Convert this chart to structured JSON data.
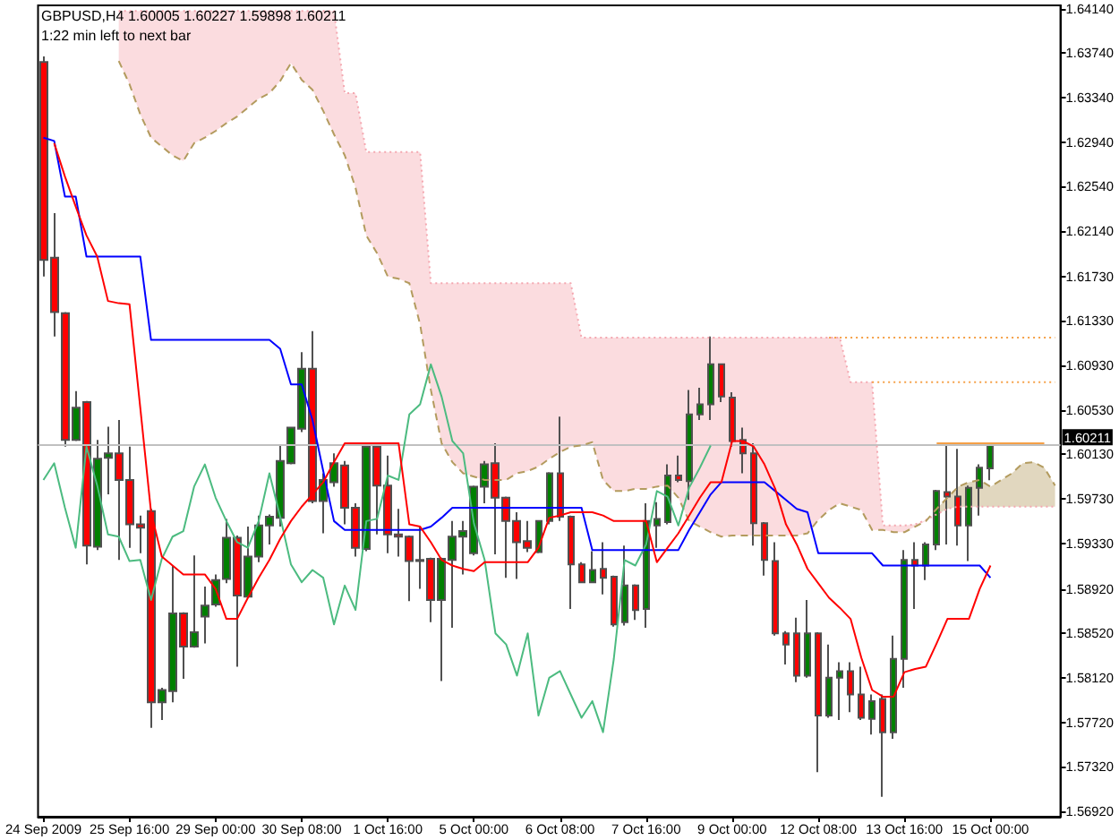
{
  "chart_data": {
    "type": "candlestick",
    "title": "GBPUSD,H4 1.60005 1.60227 1.59898 1.60211",
    "subtitle": "1:22 min left to next bar",
    "categories": [
      "24 Sep 2009",
      null,
      null,
      null,
      null,
      null,
      null,
      null,
      "25 Sep 16:00",
      null,
      null,
      null,
      null,
      null,
      null,
      null,
      "29 Sep 00:00",
      null,
      null,
      null,
      null,
      null,
      null,
      null,
      "30 Sep 08:00",
      null,
      null,
      null,
      null,
      null,
      null,
      null,
      "1 Oct 16:00",
      null,
      null,
      null,
      null,
      null,
      null,
      null,
      "5 Oct 00:00",
      null,
      null,
      null,
      null,
      null,
      null,
      null,
      "6 Oct 08:00",
      null,
      null,
      null,
      null,
      null,
      null,
      null,
      "7 Oct 16:00",
      null,
      null,
      null,
      null,
      null,
      null,
      null,
      "9 Oct 00:00",
      null,
      null,
      null,
      null,
      null,
      null,
      null,
      "12 Oct 08:00",
      null,
      null,
      null,
      null,
      null,
      null,
      null,
      "13 Oct 16:00",
      null,
      null,
      null,
      null,
      null,
      null,
      null,
      "15 Oct 00:00",
      null,
      null,
      null,
      null,
      null,
      null
    ],
    "ohlc": [
      [
        1.6366,
        1.6371,
        1.6173,
        1.6188
      ],
      [
        1.619,
        1.623,
        1.6119,
        1.6141
      ],
      [
        1.614,
        1.6141,
        1.602,
        1.6026
      ],
      [
        1.6026,
        1.607,
        1.6025,
        1.6055
      ],
      [
        1.606,
        1.6061,
        1.5914,
        1.5931
      ],
      [
        1.593,
        1.6026,
        1.5927,
        1.6009
      ],
      [
        1.601,
        1.6038,
        1.5977,
        1.6014
      ],
      [
        1.6014,
        1.6044,
        1.5918,
        1.599
      ],
      [
        1.599,
        1.602,
        1.5929,
        1.595
      ],
      [
        1.595,
        1.5958,
        1.5924,
        1.5947
      ],
      [
        1.5962,
        1.5964,
        1.5767,
        1.579
      ],
      [
        1.579,
        1.5803,
        1.5774,
        1.5801
      ],
      [
        1.58,
        1.5913,
        1.579,
        1.587
      ],
      [
        1.587,
        1.5871,
        1.5811,
        1.584
      ],
      [
        1.584,
        1.5922,
        1.5839,
        1.5853
      ],
      [
        1.5867,
        1.5894,
        1.5843,
        1.5877
      ],
      [
        1.5878,
        1.5905,
        1.5876,
        1.59
      ],
      [
        1.5901,
        1.5955,
        1.5897,
        1.5938
      ],
      [
        1.5938,
        1.594,
        1.5822,
        1.5886
      ],
      [
        1.5885,
        1.5948,
        1.5884,
        1.5921
      ],
      [
        1.5921,
        1.5958,
        1.5916,
        1.5949
      ],
      [
        1.5949,
        1.5959,
        1.5932,
        1.5957
      ],
      [
        1.5956,
        1.6021,
        1.5948,
        1.6007
      ],
      [
        1.6005,
        1.6038,
        1.6004,
        1.6037
      ],
      [
        1.6036,
        1.6105,
        1.6033,
        1.609
      ],
      [
        1.609,
        1.6124,
        1.5969,
        1.5971
      ],
      [
        1.5971,
        1.5996,
        1.5942,
        1.599
      ],
      [
        1.5988,
        1.6014,
        1.5984,
        1.6005
      ],
      [
        1.6003,
        1.6007,
        1.595,
        1.5965
      ],
      [
        1.5965,
        1.5969,
        1.5921,
        1.5929
      ],
      [
        1.5928,
        1.6023,
        1.5926,
        1.602
      ],
      [
        1.602,
        1.6021,
        1.5941,
        1.5985
      ],
      [
        1.5985,
        1.6012,
        1.5924,
        1.5941
      ],
      [
        1.5941,
        1.5964,
        1.5921,
        1.5939
      ],
      [
        1.5939,
        1.594,
        1.5881,
        1.5917
      ],
      [
        1.5917,
        1.5948,
        1.5892,
        1.5918
      ],
      [
        1.5919,
        1.592,
        1.5862,
        1.5882
      ],
      [
        1.5882,
        1.592,
        1.5809,
        1.5919
      ],
      [
        1.5918,
        1.5953,
        1.5857,
        1.5939
      ],
      [
        1.5939,
        1.5953,
        1.5905,
        1.5944
      ],
      [
        1.5924,
        1.5985,
        1.5922,
        1.5984
      ],
      [
        1.5984,
        1.6007,
        1.5969,
        1.6004
      ],
      [
        1.6005,
        1.6023,
        1.5923,
        1.5974
      ],
      [
        1.5974,
        1.5975,
        1.5902,
        1.5953
      ],
      [
        1.5953,
        1.5961,
        1.5901,
        1.5934
      ],
      [
        1.5935,
        1.5953,
        1.5925,
        1.5929
      ],
      [
        1.5925,
        1.5954,
        1.5924,
        1.5953
      ],
      [
        1.5953,
        1.5997,
        1.595,
        1.5996
      ],
      [
        1.5996,
        1.6047,
        1.5953,
        1.5957
      ],
      [
        1.5957,
        1.5958,
        1.5874,
        1.5914
      ],
      [
        1.5914,
        1.5916,
        1.5897,
        1.5898
      ],
      [
        1.5898,
        1.5926,
        1.5897,
        1.5909
      ],
      [
        1.591,
        1.5934,
        1.5887,
        1.5902
      ],
      [
        1.5903,
        1.5904,
        1.5858,
        1.586
      ],
      [
        1.5862,
        1.5931,
        1.5859,
        1.5895
      ],
      [
        1.5895,
        1.5896,
        1.5864,
        1.5873
      ],
      [
        1.5874,
        1.5969,
        1.5857,
        1.5953
      ],
      [
        1.5949,
        1.597,
        1.5929,
        1.5955
      ],
      [
        1.5952,
        1.6004,
        1.595,
        1.5994
      ],
      [
        1.5994,
        1.6012,
        1.5988,
        1.599
      ],
      [
        1.5989,
        1.6071,
        1.5972,
        1.6049
      ],
      [
        1.6049,
        1.6073,
        1.6044,
        1.6058
      ],
      [
        1.6058,
        1.6119,
        1.6044,
        1.6094
      ],
      [
        1.6094,
        1.6095,
        1.606,
        1.6065
      ],
      [
        1.6064,
        1.6069,
        1.602,
        1.6025
      ],
      [
        1.6026,
        1.6037,
        1.5996,
        1.6014
      ],
      [
        1.6014,
        1.6023,
        1.5931,
        1.5951
      ],
      [
        1.5951,
        1.5952,
        1.5904,
        1.5918
      ],
      [
        1.5917,
        1.5934,
        1.585,
        1.5852
      ],
      [
        1.5852,
        1.5854,
        1.5824,
        1.5842
      ],
      [
        1.5852,
        1.5866,
        1.5808,
        1.5814
      ],
      [
        1.5814,
        1.5882,
        1.5812,
        1.5852
      ],
      [
        1.5852,
        1.5853,
        1.5727,
        1.5778
      ],
      [
        1.5778,
        1.5842,
        1.5776,
        1.5812
      ],
      [
        1.5812,
        1.5826,
        1.5774,
        1.5818
      ],
      [
        1.5818,
        1.5826,
        1.5781,
        1.5797
      ],
      [
        1.5797,
        1.5822,
        1.5774,
        1.5776
      ],
      [
        1.5775,
        1.5797,
        1.5761,
        1.5791
      ],
      [
        1.5793,
        1.5797,
        1.5705,
        1.5763
      ],
      [
        1.5763,
        1.585,
        1.5757,
        1.5829
      ],
      [
        1.5829,
        1.5927,
        1.5803,
        1.5918
      ],
      [
        1.5918,
        1.5934,
        1.5874,
        1.5913
      ],
      [
        1.5913,
        1.5934,
        1.59,
        1.5932
      ],
      [
        1.5932,
        1.5981,
        1.5927,
        1.598
      ],
      [
        1.5979,
        1.6021,
        1.5932,
        1.5975
      ],
      [
        1.5975,
        1.6018,
        1.5931,
        1.5949
      ],
      [
        1.5949,
        1.5985,
        1.5917,
        1.5983
      ],
      [
        1.5983,
        1.6004,
        1.5958,
        1.6001
      ],
      [
        1.60005,
        1.60227,
        1.59898,
        1.60211
      ],
      null,
      null,
      null,
      null,
      null,
      null
    ],
    "ylim": [
      1.5687,
      1.6417
    ],
    "yticks": [
      {
        "value": 1.6414,
        "label": "1.64140"
      },
      {
        "value": 1.6374,
        "label": "1.63740"
      },
      {
        "value": 1.6334,
        "label": "1.63340"
      },
      {
        "value": 1.6294,
        "label": "1.62940"
      },
      {
        "value": 1.6254,
        "label": "1.62540"
      },
      {
        "value": 1.6214,
        "label": "1.62140"
      },
      {
        "value": 1.6173,
        "label": "1.61730"
      },
      {
        "value": 1.6133,
        "label": "1.61330"
      },
      {
        "value": 1.6093,
        "label": "1.60930"
      },
      {
        "value": 1.6053,
        "label": "1.60530"
      },
      {
        "value": 1.6013,
        "label": "1.60130"
      },
      {
        "value": 1.5973,
        "label": "1.59730"
      },
      {
        "value": 1.5933,
        "label": "1.59330"
      },
      {
        "value": 1.5892,
        "label": "1.58920"
      },
      {
        "value": 1.5852,
        "label": "1.58520"
      },
      {
        "value": 1.5812,
        "label": "1.58120"
      },
      {
        "value": 1.5772,
        "label": "1.57720"
      },
      {
        "value": 1.5732,
        "label": "1.57320"
      },
      {
        "value": 1.5692,
        "label": "1.56920"
      }
    ],
    "ref_lines": [
      {
        "axis": "y",
        "value": 1.60211,
        "label": "1.60211",
        "color": "#c0c0c0"
      }
    ],
    "series": [
      {
        "type": "line",
        "color": "#f4a7b0",
        "line_style": "dotted",
        "values": [
          null,
          null,
          null,
          null,
          null,
          null,
          null,
          1.6412,
          1.6412,
          1.6412,
          1.6412,
          1.6412,
          1.6412,
          1.6412,
          1.6412,
          1.6412,
          1.6412,
          1.6412,
          1.6412,
          1.6412,
          1.6412,
          1.6412,
          1.6412,
          1.6412,
          1.6412,
          1.6412,
          1.6412,
          1.6412,
          1.6338,
          1.6338,
          1.6285,
          1.6285,
          1.6285,
          1.6285,
          1.6285,
          1.6285,
          1.6167,
          1.6167,
          1.6167,
          1.6167,
          1.6167,
          1.6167,
          1.6167,
          1.6167,
          1.6167,
          1.6167,
          1.6167,
          1.6167,
          1.6167,
          1.6167,
          1.6118,
          1.6118,
          1.6118,
          1.6118,
          1.6118,
          1.6118,
          1.6118,
          1.6118,
          1.6118,
          1.6118,
          1.6118,
          1.6118,
          1.6118,
          1.6118,
          1.6118,
          1.6118,
          1.6118,
          1.6118,
          1.6118,
          1.6118,
          1.6118,
          1.6118,
          1.6118,
          1.6118,
          1.6118,
          1.6078,
          1.6078,
          1.6078,
          1.5949,
          1.5949,
          1.5949,
          1.595,
          1.5954,
          1.5959,
          1.5964,
          1.5966,
          1.5966,
          1.5966,
          1.5966,
          1.5966,
          1.5966,
          1.5966,
          1.5966,
          1.5966,
          1.5966
        ],
        "lower": [
          null,
          null,
          null,
          null,
          null,
          null,
          null,
          1.6367,
          1.6346,
          1.6319,
          1.6298,
          1.629,
          1.6282,
          1.6277,
          1.6293,
          1.6298,
          1.6304,
          1.6311,
          1.6317,
          1.6325,
          1.6333,
          1.6338,
          1.6349,
          1.6365,
          1.635,
          1.6341,
          1.6322,
          1.6301,
          1.6282,
          1.6253,
          1.621,
          1.6194,
          1.6173,
          1.6171,
          1.6167,
          1.613,
          1.6071,
          1.6023,
          1.6006,
          1.5996,
          1.5993,
          1.599,
          1.599,
          1.599,
          1.5996,
          1.5998,
          1.6002,
          1.6009,
          1.6015,
          1.602,
          1.6021,
          1.6024,
          1.599,
          1.598,
          1.598,
          1.5982,
          1.5982,
          1.5984,
          1.5985,
          1.5974,
          1.5953,
          1.5948,
          1.5943,
          1.5939,
          1.594,
          1.594,
          1.594,
          1.594,
          1.594,
          1.594,
          1.594,
          1.5942,
          1.5954,
          1.5963,
          1.5969,
          1.5966,
          1.5963,
          1.5945,
          1.5945,
          1.5943,
          1.5943,
          1.5948,
          1.5953,
          null,
          null,
          null,
          null,
          null,
          null,
          null,
          null,
          null,
          null,
          null,
          null
        ],
        "upper": [
          null,
          null,
          null,
          null,
          null,
          null,
          null,
          1.6412,
          1.6412,
          1.6412,
          1.6412,
          1.6412,
          1.6412,
          1.6412,
          1.6412,
          1.6412,
          1.6412,
          1.6412,
          1.6412,
          1.6412,
          1.6412,
          1.6412,
          1.6412,
          1.6412,
          1.6412,
          1.6412,
          1.6412,
          1.6412,
          1.6338,
          1.6338,
          1.6285,
          1.6285,
          1.6285,
          1.6285,
          1.6285,
          1.6285,
          1.6167,
          1.6167,
          1.6167,
          1.6167,
          1.6167,
          1.6167,
          1.6167,
          1.6167,
          1.6167,
          1.6167,
          1.6167,
          1.6167,
          1.6167,
          1.6167,
          1.6118,
          1.6118,
          1.6118,
          1.6118,
          1.6118,
          1.6118,
          1.6118,
          1.6118,
          1.6118,
          1.6118,
          1.6118,
          1.6118,
          1.6118,
          1.6118,
          1.6118,
          1.6118,
          1.6118,
          1.6118,
          1.6118,
          1.6118,
          1.6118,
          1.6118,
          1.6118,
          1.6118,
          1.6118,
          1.6078,
          1.6078,
          1.6078,
          1.5949,
          1.5949,
          1.5949,
          1.595,
          1.5954,
          null,
          null,
          null,
          null,
          null,
          null,
          null,
          null,
          null,
          null,
          null,
          null
        ]
      },
      {
        "type": "line",
        "color": "#b39b5e",
        "line_style": "dashed",
        "values": [
          null,
          null,
          null,
          null,
          null,
          null,
          null,
          1.6367,
          1.6346,
          1.6319,
          1.6298,
          1.629,
          1.6282,
          1.6277,
          1.6293,
          1.6298,
          1.6304,
          1.6311,
          1.6317,
          1.6325,
          1.6333,
          1.6338,
          1.6349,
          1.6365,
          1.635,
          1.6341,
          1.6322,
          1.6301,
          1.6282,
          1.6253,
          1.621,
          1.6194,
          1.6173,
          1.6171,
          1.6167,
          1.613,
          1.6071,
          1.6023,
          1.6006,
          1.5996,
          1.5993,
          1.599,
          1.599,
          1.599,
          1.5996,
          1.5998,
          1.6002,
          1.6009,
          1.6015,
          1.602,
          1.6021,
          1.6024,
          1.599,
          1.598,
          1.598,
          1.5982,
          1.5982,
          1.5984,
          1.5985,
          1.5974,
          1.5953,
          1.5948,
          1.5943,
          1.5939,
          1.594,
          1.594,
          1.594,
          1.594,
          1.594,
          1.594,
          1.594,
          1.5942,
          1.5954,
          1.5963,
          1.5969,
          1.5966,
          1.5963,
          1.5945,
          1.5945,
          1.5943,
          1.5943,
          1.5948,
          1.5953,
          1.5964,
          1.5974,
          1.5984,
          1.5988,
          1.599,
          1.5984,
          1.599,
          1.5996,
          1.6005,
          1.6006,
          1.6001,
          1.5985
        ],
        "lower": [
          null,
          null,
          null,
          null,
          null,
          null,
          null,
          null,
          null,
          null,
          null,
          null,
          null,
          null,
          null,
          null,
          null,
          null,
          null,
          null,
          null,
          null,
          null,
          null,
          null,
          null,
          null,
          null,
          null,
          null,
          null,
          null,
          null,
          null,
          null,
          null,
          null,
          null,
          null,
          null,
          null,
          null,
          null,
          null,
          null,
          null,
          null,
          null,
          null,
          null,
          null,
          null,
          null,
          null,
          null,
          null,
          null,
          null,
          null,
          null,
          null,
          null,
          null,
          null,
          null,
          null,
          null,
          null,
          null,
          null,
          null,
          null,
          null,
          null,
          null,
          null,
          null,
          null,
          null,
          null,
          null,
          null,
          null,
          1.5959,
          1.5964,
          1.5966,
          1.5966,
          1.5966,
          1.5966,
          1.5966,
          1.5966,
          1.5966,
          1.5966,
          1.5966,
          1.5966
        ],
        "upper": [
          null,
          null,
          null,
          null,
          null,
          null,
          null,
          null,
          null,
          null,
          null,
          null,
          null,
          null,
          null,
          null,
          null,
          null,
          null,
          null,
          null,
          null,
          null,
          null,
          null,
          null,
          null,
          null,
          null,
          null,
          null,
          null,
          null,
          null,
          null,
          null,
          null,
          null,
          null,
          null,
          null,
          null,
          null,
          null,
          null,
          null,
          null,
          null,
          null,
          null,
          null,
          null,
          null,
          null,
          null,
          null,
          null,
          null,
          null,
          null,
          null,
          null,
          null,
          null,
          null,
          null,
          null,
          null,
          null,
          null,
          null,
          null,
          null,
          null,
          null,
          null,
          null,
          null,
          null,
          null,
          null,
          null,
          null,
          1.5964,
          1.5974,
          1.5984,
          1.5988,
          1.599,
          1.5984,
          1.599,
          1.5996,
          1.6005,
          1.6006,
          1.6001,
          1.5985
        ]
      },
      {
        "type": "line",
        "color": "#4cbb80",
        "values": [
          1.599,
          1.6005,
          1.5965,
          1.5929,
          1.602,
          1.5985,
          1.5941,
          1.5939,
          1.5917,
          1.5918,
          1.5882,
          1.5919,
          1.5939,
          1.5944,
          1.5984,
          1.6004,
          1.5974,
          1.5953,
          1.5934,
          1.5929,
          1.5953,
          1.5996,
          1.5957,
          1.5914,
          1.5898,
          1.5909,
          1.5902,
          1.586,
          1.5895,
          1.5873,
          1.5953,
          1.5955,
          1.5994,
          1.599,
          1.6049,
          1.6058,
          1.6094,
          1.6065,
          1.6025,
          1.6014,
          1.5951,
          1.5918,
          1.5852,
          1.5842,
          1.5814,
          1.5852,
          1.5778,
          1.5812,
          1.5818,
          1.5797,
          1.5776,
          1.5791,
          1.5763,
          1.5829,
          1.5918,
          1.5913,
          1.5932,
          1.598,
          1.5975,
          1.5949,
          1.5983,
          1.6001,
          1.6021,
          null,
          null,
          null,
          null,
          null,
          null,
          null,
          null,
          null,
          null,
          null,
          null,
          null,
          null,
          null,
          null,
          null,
          null,
          null,
          null,
          null,
          null,
          null,
          null,
          null,
          null,
          null,
          null,
          null,
          null,
          null,
          null
        ]
      },
      {
        "type": "line",
        "color": "#0000ff",
        "values": [
          1.6298,
          1.6295,
          1.6245,
          1.6245,
          1.6191,
          1.6191,
          1.6191,
          1.6191,
          1.6191,
          1.6191,
          1.6116,
          1.6116,
          1.6116,
          1.6116,
          1.6116,
          1.6116,
          1.6116,
          1.6116,
          1.6116,
          1.6116,
          1.6116,
          1.6116,
          1.6108,
          1.6076,
          1.6076,
          1.6044,
          1.5998,
          1.5953,
          1.5945,
          1.5945,
          1.5945,
          1.5945,
          1.5945,
          1.5945,
          1.5945,
          1.5945,
          1.5948,
          1.5956,
          1.5965,
          1.5965,
          1.5965,
          1.5965,
          1.5965,
          1.5965,
          1.5965,
          1.5965,
          1.5965,
          1.5965,
          1.5965,
          1.5965,
          1.5965,
          1.5927,
          1.5927,
          1.5927,
          1.5927,
          1.5927,
          1.5927,
          1.5927,
          1.5927,
          1.5927,
          1.5945,
          1.5961,
          1.5977,
          1.5988,
          1.5988,
          1.5988,
          1.5988,
          1.5988,
          1.598,
          1.5972,
          1.5964,
          1.5961,
          1.5924,
          1.5924,
          1.5924,
          1.5924,
          1.5924,
          1.5924,
          1.5913,
          1.5913,
          1.5913,
          1.5913,
          1.5913,
          1.5913,
          1.5913,
          1.5913,
          1.5913,
          1.5913,
          1.5902,
          null,
          null,
          null,
          null,
          null,
          null
        ]
      },
      {
        "type": "line",
        "color": "#ff0000",
        "values": [
          null,
          1.6293,
          1.6263,
          1.6236,
          1.621,
          1.6191,
          1.6151,
          1.6149,
          1.6148,
          1.6055,
          1.5961,
          1.5921,
          1.5913,
          1.5905,
          1.5905,
          1.5905,
          1.5892,
          1.5865,
          1.5865,
          1.5884,
          1.5902,
          1.5918,
          1.5937,
          1.5953,
          1.5966,
          1.5977,
          1.5988,
          1.6006,
          1.6023,
          1.6023,
          1.6023,
          1.6023,
          1.6023,
          1.6023,
          1.595,
          1.5948,
          1.5934,
          1.5918,
          1.5913,
          1.591,
          1.5908,
          1.5916,
          1.5916,
          1.5916,
          1.5916,
          1.5916,
          1.5929,
          1.5956,
          1.5958,
          1.5961,
          1.5961,
          1.5961,
          1.5958,
          1.5953,
          1.5953,
          1.5953,
          1.5953,
          1.5916,
          1.5929,
          1.5942,
          1.5958,
          1.5974,
          1.5988,
          1.5988,
          1.6025,
          1.6025,
          1.602,
          1.6004,
          1.5982,
          1.595,
          1.5932,
          1.591,
          1.5897,
          1.5884,
          1.5875,
          1.5865,
          1.583,
          1.5801,
          1.5795,
          1.5795,
          1.5817,
          1.582,
          1.5822,
          1.5843,
          1.5865,
          1.5865,
          1.5865,
          1.5892,
          1.5913,
          null,
          null,
          null,
          null,
          null,
          null
        ]
      },
      {
        "type": "line",
        "color": "#f5a046",
        "line_style": "dotted",
        "values": [
          null,
          null,
          null,
          null,
          null,
          null,
          null,
          null,
          null,
          null,
          null,
          null,
          null,
          null,
          null,
          null,
          null,
          null,
          null,
          null,
          null,
          null,
          null,
          null,
          null,
          null,
          null,
          null,
          null,
          null,
          null,
          null,
          null,
          null,
          null,
          null,
          null,
          null,
          null,
          null,
          null,
          null,
          null,
          null,
          null,
          null,
          null,
          null,
          null,
          null,
          null,
          null,
          null,
          null,
          null,
          null,
          null,
          null,
          null,
          null,
          null,
          null,
          null,
          null,
          null,
          null,
          null,
          null,
          null,
          null,
          null,
          null,
          null,
          1.6118,
          1.6118,
          1.6118,
          1.6118,
          1.6118,
          1.6118,
          1.6118,
          1.6118,
          1.6118,
          1.6118,
          1.6118,
          1.6118,
          1.6118,
          1.6118,
          1.6118,
          1.6118,
          1.6118,
          1.6118,
          1.6118,
          1.6118,
          1.6118,
          1.6118
        ]
      },
      {
        "type": "line",
        "color": "#f5a046",
        "line_style": "dotted",
        "values": [
          null,
          null,
          null,
          null,
          null,
          null,
          null,
          null,
          null,
          null,
          null,
          null,
          null,
          null,
          null,
          null,
          null,
          null,
          null,
          null,
          null,
          null,
          null,
          null,
          null,
          null,
          null,
          null,
          null,
          null,
          null,
          null,
          null,
          null,
          null,
          null,
          null,
          null,
          null,
          null,
          null,
          null,
          null,
          null,
          null,
          null,
          null,
          null,
          null,
          null,
          null,
          null,
          null,
          null,
          null,
          null,
          null,
          null,
          null,
          null,
          null,
          null,
          null,
          null,
          null,
          null,
          null,
          null,
          null,
          null,
          null,
          null,
          null,
          null,
          null,
          null,
          null,
          1.6078,
          1.6078,
          1.6078,
          1.6078,
          1.6078,
          1.6078,
          1.6078,
          1.6078,
          1.6078,
          1.6078,
          1.6078,
          1.6078,
          1.6078,
          1.6078,
          1.6078,
          1.6078,
          1.6078,
          1.6078
        ]
      },
      {
        "type": "line",
        "color": "#f5a046",
        "values": [
          null,
          null,
          null,
          null,
          null,
          null,
          null,
          null,
          null,
          null,
          null,
          null,
          null,
          null,
          null,
          null,
          null,
          null,
          null,
          null,
          null,
          null,
          null,
          null,
          null,
          null,
          null,
          null,
          null,
          null,
          null,
          null,
          null,
          null,
          null,
          null,
          null,
          null,
          null,
          null,
          null,
          null,
          null,
          null,
          null,
          null,
          null,
          null,
          null,
          null,
          null,
          null,
          null,
          null,
          null,
          null,
          null,
          null,
          null,
          null,
          null,
          null,
          null,
          null,
          null,
          null,
          null,
          null,
          null,
          null,
          null,
          null,
          null,
          null,
          null,
          null,
          null,
          null,
          null,
          null,
          null,
          null,
          null,
          1.6023,
          1.6023,
          1.6023,
          1.6023,
          1.6023,
          1.6023,
          1.6023,
          1.6023,
          1.6023,
          1.6023,
          1.6023,
          null
        ]
      }
    ]
  }
}
